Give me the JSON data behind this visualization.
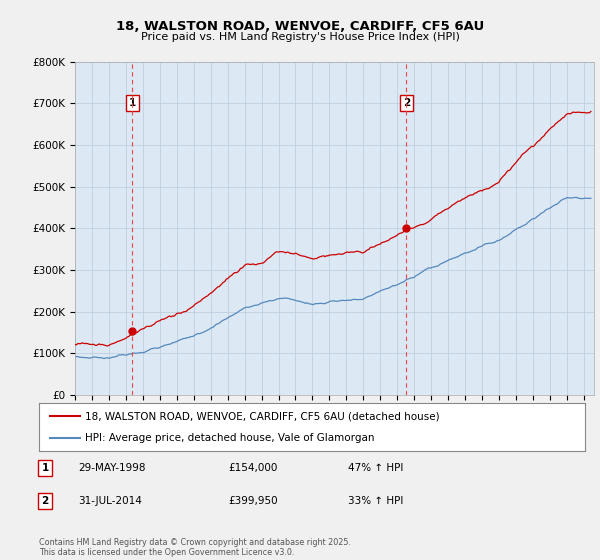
{
  "title_line1": "18, WALSTON ROAD, WENVOE, CARDIFF, CF5 6AU",
  "title_line2": "Price paid vs. HM Land Registry's House Price Index (HPI)",
  "background_color": "#f0f0f0",
  "plot_bg_color": "#dce9f5",
  "grid_color": "#c0cfe0",
  "red_color": "#cc0000",
  "blue_color": "#5588bb",
  "dashed_color": "#ee4444",
  "ylim_max": 800000,
  "purchase1_year": 1998.37,
  "purchase1_price": 154000,
  "purchase2_year": 2014.54,
  "purchase2_price": 399950,
  "legend_line1": "18, WALSTON ROAD, WENVOE, CARDIFF, CF5 6AU (detached house)",
  "legend_line2": "HPI: Average price, detached house, Vale of Glamorgan",
  "ann1_label": "1",
  "ann1_date": "29-MAY-1998",
  "ann1_price": "£154,000",
  "ann1_pct": "47% ↑ HPI",
  "ann2_label": "2",
  "ann2_date": "31-JUL-2014",
  "ann2_price": "£399,950",
  "ann2_pct": "33% ↑ HPI",
  "footer": "Contains HM Land Registry data © Crown copyright and database right 2025.\nThis data is licensed under the Open Government Licence v3.0."
}
